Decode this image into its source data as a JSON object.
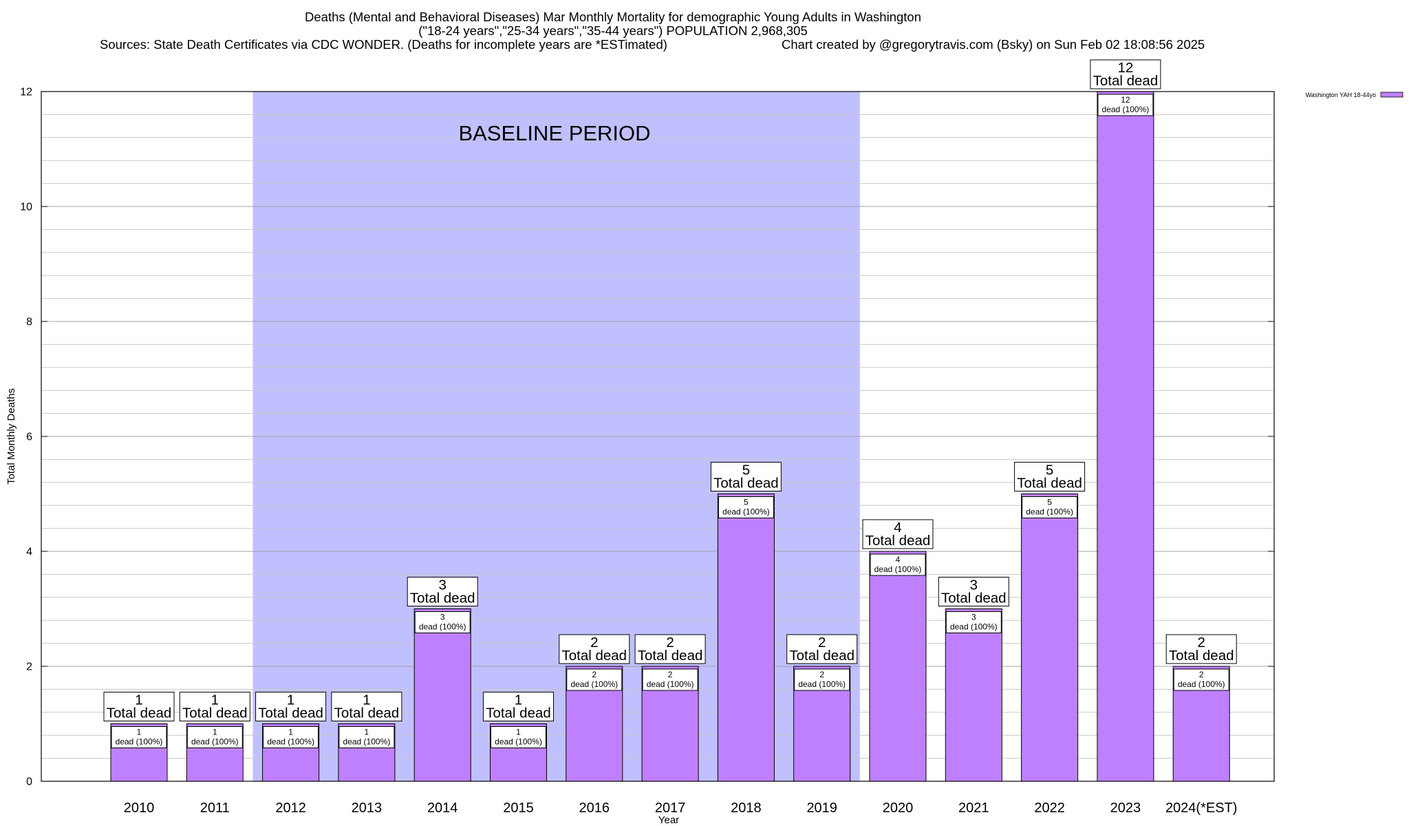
{
  "header": {
    "title_line1": "Deaths (Mental and Behavioral Diseases) Mar Monthly Mortality for demographic Young Adults in Washington",
    "title_line2": "(\"18-24 years\",\"25-34 years\",\"35-44 years\") POPULATION 2,968,305",
    "sources": "Sources: State Death Certificates via CDC WONDER. (Deaths for incomplete years are *ESTimated)",
    "credit": "Chart created by @gregorytravis.com (Bsky) on Sun Feb 02 18:08:56 2025"
  },
  "chart_data": {
    "type": "bar",
    "xlabel": "Year",
    "ylabel": "Total Monthly Deaths",
    "ylim": [
      0,
      12
    ],
    "y_ticks": [
      "0",
      "2",
      "4",
      "6",
      "8",
      "10",
      "12"
    ],
    "grid": true,
    "legend_position": "top-right",
    "categories": [
      "2010",
      "2011",
      "2012",
      "2013",
      "2014",
      "2015",
      "2016",
      "2017",
      "2018",
      "2019",
      "2020",
      "2021",
      "2022",
      "2023",
      "2024(*EST)"
    ],
    "series": [
      {
        "name": "Washington YAH 18-44yo",
        "color": "#bf80ff",
        "values": [
          1,
          1,
          1,
          1,
          3,
          1,
          2,
          2,
          5,
          2,
          4,
          3,
          5,
          12,
          2
        ]
      }
    ],
    "total_labels": {
      "values": [
        "1",
        "1",
        "1",
        "1",
        "3",
        "1",
        "2",
        "2",
        "5",
        "2",
        "4",
        "3",
        "5",
        "12",
        "2"
      ],
      "text": "Total dead"
    },
    "inner_labels": {
      "values": [
        "1",
        "1",
        "1",
        "1",
        "3",
        "1",
        "2",
        "2",
        "5",
        "2",
        "4",
        "3",
        "5",
        "12",
        "2"
      ],
      "text": "dead (100%)"
    },
    "annotations": {
      "baseline_label": "BASELINE PERIOD",
      "baseline_start": "2012",
      "baseline_end": "2019",
      "baseline_color": "#c0c0ff"
    }
  }
}
